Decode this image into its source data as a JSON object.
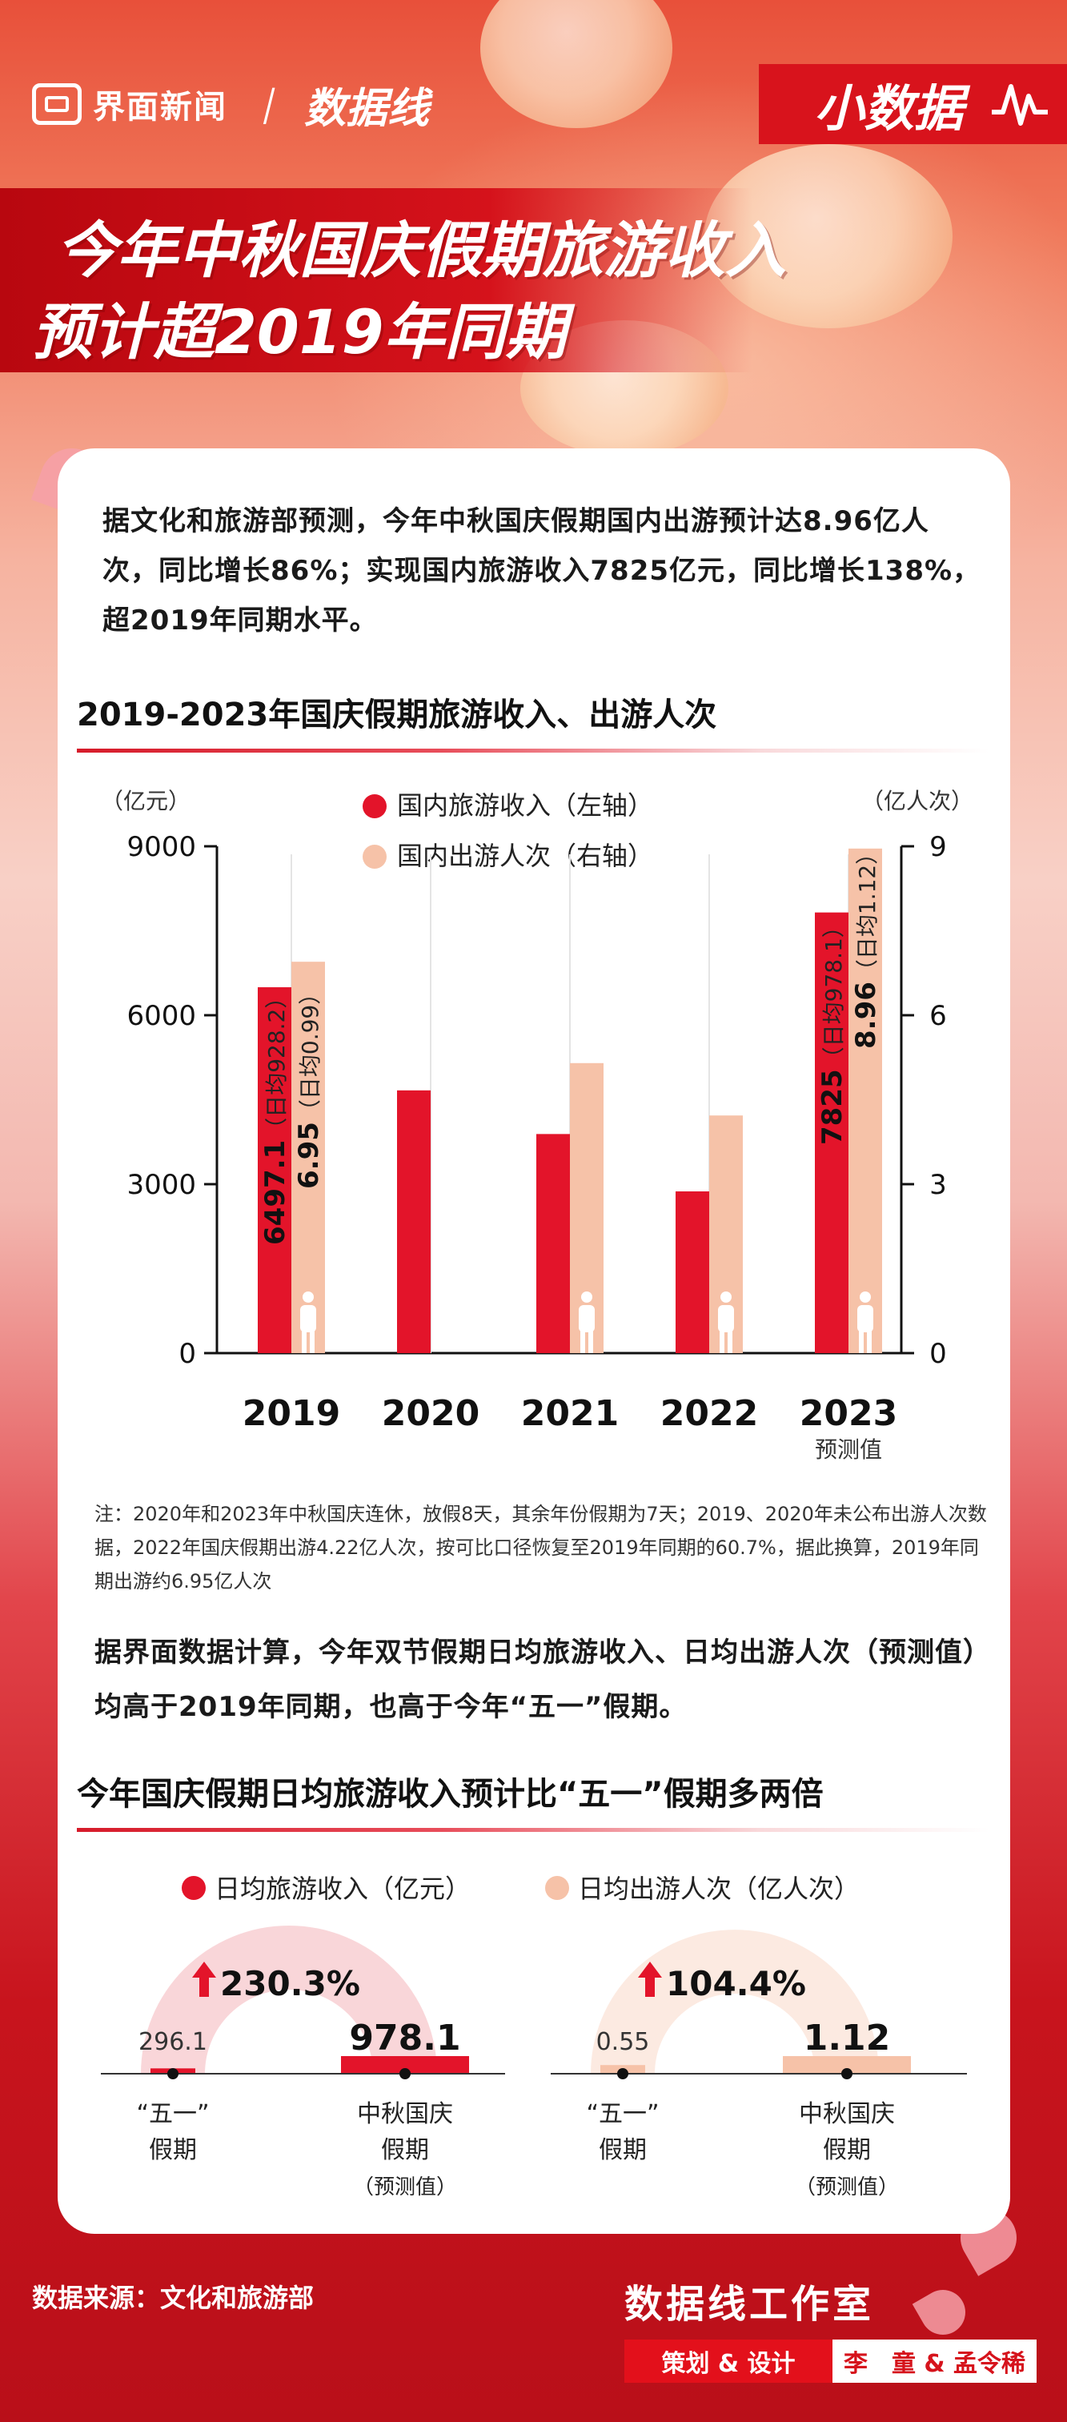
{
  "brand": {
    "outlet": "界面新闻",
    "datawire": "数据线",
    "column_tag": "小数据"
  },
  "headline": {
    "line1": "今年中秋国庆假期旅游收入",
    "line2": "预计超2019年同期"
  },
  "intro": "据文化和旅游部预测，今年中秋国庆假期国内出游预计达8.96亿人次，同比增长86%；实现国内旅游收入7825亿元，同比增长138%，超2019年同期水平。",
  "section1_title": "2019-2023年国庆假期旅游收入、出游人次",
  "section2_title": "今年国庆假期日均旅游收入预计比“五一”假期多两倍",
  "paragraph2": "据界面数据计算，今年双节假期日均旅游收入、日均出游人次（预测值）均高于2019年同期，也高于今年“五一”假期。",
  "note": "注：2020年和2023年中秋国庆连休，放假8天，其余年份假期为7天；2019、2020年未公布出游人次数据，2022年国庆假期出游4.22亿人次，按可比口径恢复至2019年同期的60.7%，据此换算，2019年同期出游约6.95亿人次",
  "source": "数据来源：文化和旅游部",
  "studio": "数据线工作室",
  "credit_label": "策划 & 设计",
  "credit_names": "李　童 & 孟令稀",
  "colors": {
    "revenue": "#e3142a",
    "visitors": "#f6c2a8",
    "accent": "#d6131c"
  },
  "chart_data": [
    {
      "type": "bar",
      "categories": [
        "2019",
        "2020",
        "2021",
        "2022",
        "2023"
      ],
      "category_note": "预测值",
      "left_unit": "（亿元）",
      "right_unit": "（亿人次）",
      "ylim_left": [
        0,
        9000
      ],
      "ylim_right": [
        0,
        9
      ],
      "yticks_left": [
        "0",
        "3000",
        "6000",
        "9000"
      ],
      "yticks_right": [
        "0",
        "3",
        "6",
        "9"
      ],
      "legend": [
        "国内旅游收入（左轴）",
        "国内出游人次（右轴）"
      ],
      "series": [
        {
          "name": "国内旅游收入（左轴）",
          "axis": "left",
          "values": [
            6497.1,
            4665.6,
            3890.6,
            2872.1,
            7825
          ]
        },
        {
          "name": "国内出游人次（右轴）",
          "axis": "right",
          "values": [
            6.95,
            null,
            5.15,
            4.22,
            8.96
          ]
        }
      ],
      "labels": {
        "r2019": "6497.1",
        "r2019_daily": "（日均928.2）",
        "v2019": "6.95",
        "v2019_daily": "（日均0.99）",
        "r2023": "7825",
        "r2023_daily": "（日均978.1）",
        "v2023": "8.96",
        "v2023_daily": "（日均1.12）"
      }
    },
    {
      "type": "pie",
      "legend": [
        "日均旅游收入（亿元）",
        "日均出游人次（亿人次）"
      ],
      "groups": [
        {
          "metric": "日均旅游收入（亿元）",
          "growth": "230.3%",
          "values": [
            296.1,
            978.1
          ],
          "labels": [
            "296.1",
            "978.1"
          ]
        },
        {
          "metric": "日均出游人次（亿人次）",
          "growth": "104.4%",
          "values": [
            0.55,
            1.12
          ],
          "labels": [
            "0.55",
            "1.12"
          ]
        }
      ],
      "cat_a": [
        "“五一”",
        "假期"
      ],
      "cat_b": [
        "中秋国庆",
        "假期",
        "（预测值）"
      ]
    }
  ]
}
